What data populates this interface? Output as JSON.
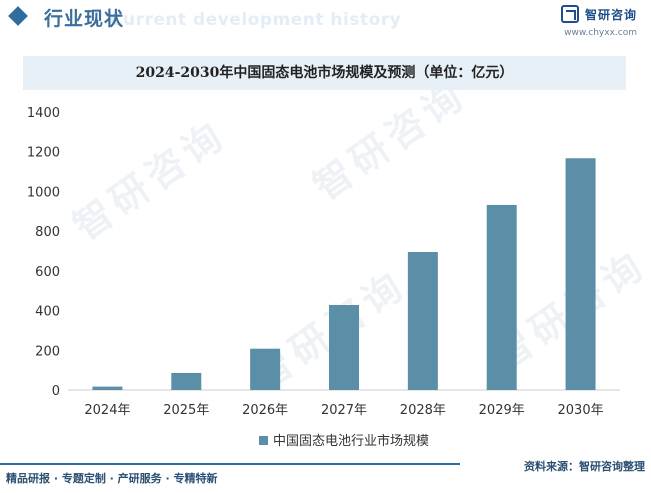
{
  "header": {
    "title": "行业现状",
    "subtitle": "Current development history"
  },
  "brand": {
    "name": "智研咨询",
    "url": "www.chyxx.com"
  },
  "chart_data": {
    "type": "bar",
    "title": "2024-2030年中国固态电池市场规模及预测（单位：亿元）",
    "categories": [
      "2024年",
      "2025年",
      "2026年",
      "2027年",
      "2028年",
      "2029年",
      "2030年"
    ],
    "series": [
      {
        "name": "中国固态电池行业市场规模",
        "values": [
          17,
          86,
          208,
          428,
          695,
          932,
          1167
        ]
      }
    ],
    "yticks": [
      0,
      200,
      400,
      600,
      800,
      1000,
      1200,
      1400
    ],
    "ylim": [
      0,
      1400
    ],
    "xlabel": "",
    "ylabel": "",
    "grid": false,
    "legend": "bottom-center",
    "bar_color": "#5b8fa8"
  },
  "footer": {
    "tags": "精品研报 · 专题定制 · 产研服务 · 专精特新",
    "source": "资料来源：智研咨询整理"
  },
  "watermark": "智研咨询"
}
